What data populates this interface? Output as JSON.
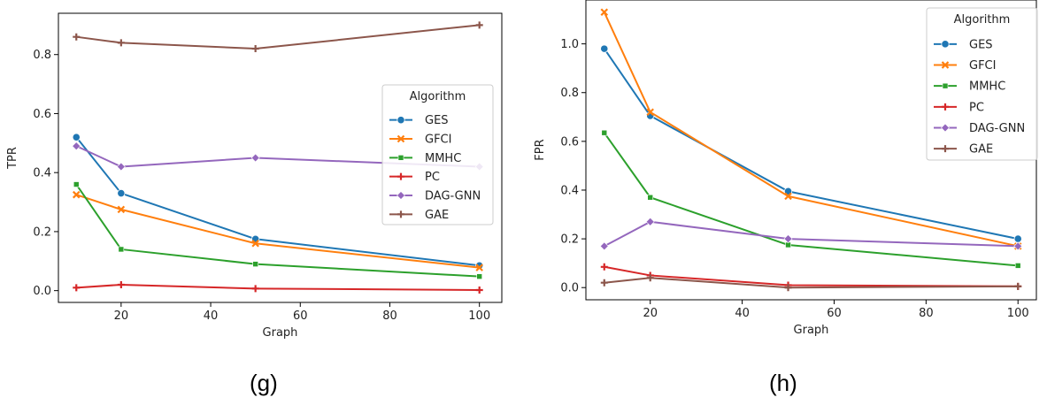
{
  "colors": {
    "GES": "#1f77b4",
    "GFCI": "#ff7f0e",
    "MMHC": "#2ca02c",
    "PC": "#d62728",
    "DAG-GNN": "#9467bd",
    "GAE": "#8c564b"
  },
  "captions": [
    "(g)",
    "(h)"
  ],
  "chart_data": [
    {
      "type": "line",
      "xlabel": "Graph",
      "ylabel": "TPR",
      "x": [
        10,
        20,
        50,
        100
      ],
      "xlim": [
        6,
        105
      ],
      "ylim": [
        -0.04,
        0.94
      ],
      "xticks": [
        20,
        40,
        60,
        80,
        100
      ],
      "yticks": [
        0.0,
        0.2,
        0.4,
        0.6,
        0.8
      ],
      "grid": false,
      "legend": {
        "title": "Algorithm",
        "placement": "center-right"
      },
      "series": [
        {
          "name": "GES",
          "marker": "circle",
          "values": [
            0.52,
            0.33,
            0.175,
            0.085
          ]
        },
        {
          "name": "GFCI",
          "marker": "x",
          "values": [
            0.325,
            0.275,
            0.16,
            0.078
          ]
        },
        {
          "name": "MMHC",
          "marker": "square",
          "values": [
            0.36,
            0.14,
            0.09,
            0.048
          ]
        },
        {
          "name": "PC",
          "marker": "plus",
          "values": [
            0.01,
            0.02,
            0.007,
            0.002
          ]
        },
        {
          "name": "DAG-GNN",
          "marker": "diamond",
          "values": [
            0.49,
            0.42,
            0.45,
            0.42
          ]
        },
        {
          "name": "GAE",
          "marker": "plus",
          "values": [
            0.86,
            0.84,
            0.82,
            0.9
          ]
        }
      ]
    },
    {
      "type": "line",
      "xlabel": "Graph",
      "ylabel": "FPR",
      "x": [
        10,
        20,
        50,
        100
      ],
      "xlim": [
        6,
        104
      ],
      "ylim": [
        -0.05,
        1.18
      ],
      "xticks": [
        20,
        40,
        60,
        80,
        100
      ],
      "yticks": [
        0.0,
        0.2,
        0.4,
        0.6,
        0.8,
        1.0
      ],
      "grid": false,
      "legend": {
        "title": "Algorithm",
        "placement": "top-right"
      },
      "series": [
        {
          "name": "GES",
          "marker": "circle",
          "values": [
            0.98,
            0.705,
            0.395,
            0.2
          ]
        },
        {
          "name": "GFCI",
          "marker": "x",
          "values": [
            1.13,
            0.72,
            0.375,
            0.17
          ]
        },
        {
          "name": "MMHC",
          "marker": "square",
          "values": [
            0.635,
            0.37,
            0.175,
            0.09
          ]
        },
        {
          "name": "PC",
          "marker": "plus",
          "values": [
            0.085,
            0.05,
            0.01,
            0.005
          ]
        },
        {
          "name": "DAG-GNN",
          "marker": "diamond",
          "values": [
            0.17,
            0.27,
            0.2,
            0.17
          ]
        },
        {
          "name": "GAE",
          "marker": "plus",
          "values": [
            0.02,
            0.04,
            0.0,
            0.005
          ]
        }
      ]
    }
  ]
}
